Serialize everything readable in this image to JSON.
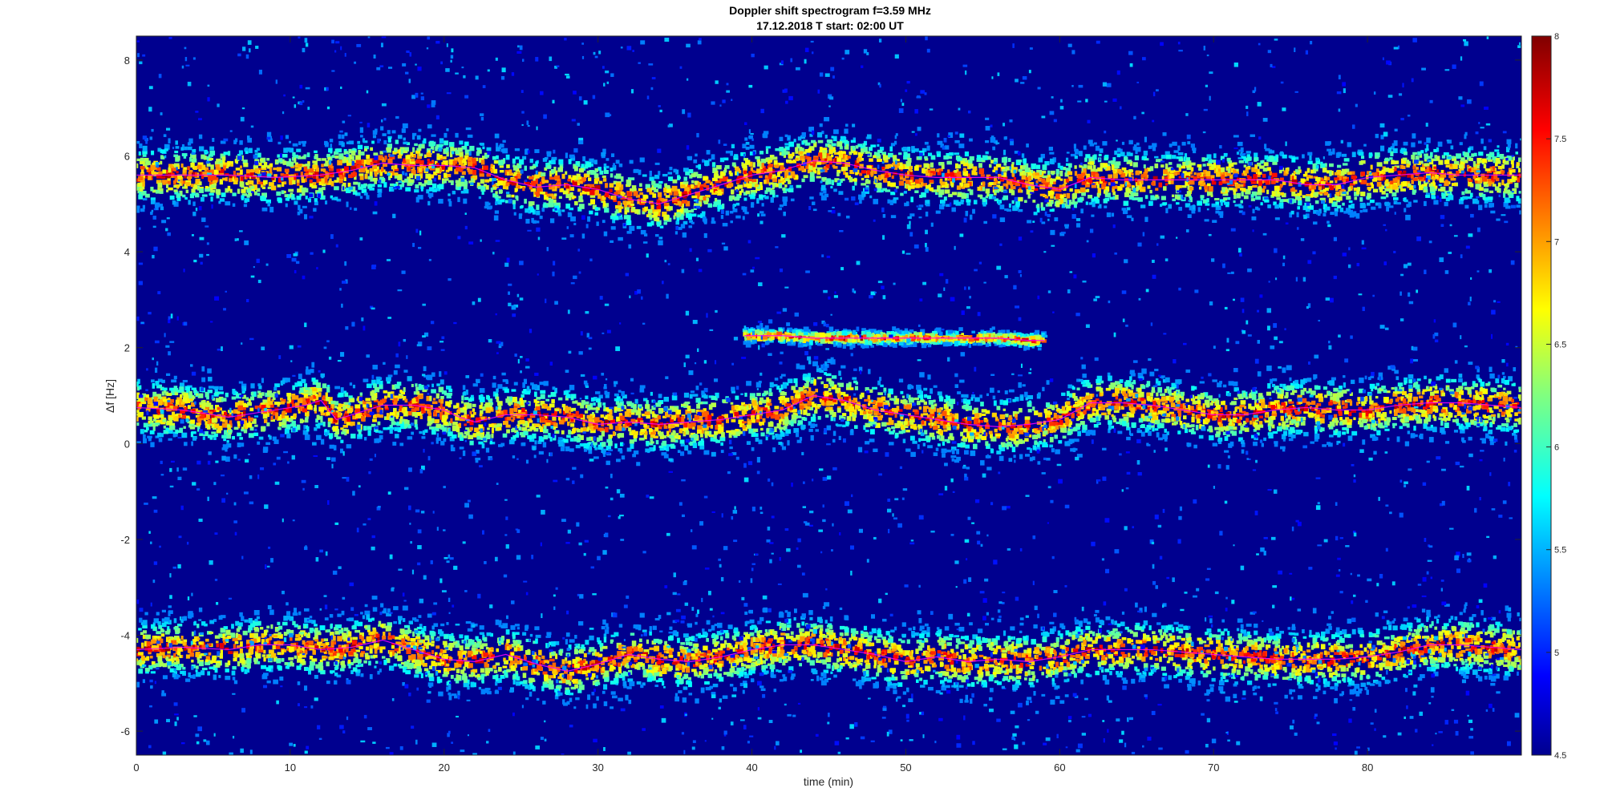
{
  "chart_data": {
    "type": "heatmap",
    "title": "Doppler shift spectrogram f=3.59 MHz",
    "subtitle": "17.12.2018   T start: 02:00 UT",
    "xlabel": "time (min)",
    "ylabel": "Δf [Hz]",
    "xlim": [
      0,
      90
    ],
    "ylim": [
      -6.5,
      8.5
    ],
    "x_ticks": [
      "0",
      "10",
      "20",
      "30",
      "40",
      "50",
      "60",
      "70",
      "80"
    ],
    "x_tick_values": [
      0,
      10,
      20,
      30,
      40,
      50,
      60,
      70,
      80
    ],
    "y_ticks": [
      "8",
      "6",
      "4",
      "2",
      "0",
      "-2",
      "-4",
      "-6"
    ],
    "y_tick_values": [
      8,
      6,
      4,
      2,
      0,
      -2,
      -4,
      -6
    ],
    "colorbar": {
      "range": [
        4.5,
        8
      ],
      "ticks": [
        "8",
        "7.5",
        "7",
        "6.5",
        "6",
        "5.5",
        "5",
        "4.5"
      ],
      "tick_values": [
        8,
        7.5,
        7,
        6.5,
        6,
        5.5,
        5,
        4.5
      ],
      "colormap": "jet"
    },
    "colors": {
      "background": "#00008f",
      "trace_line": "#ff00ff",
      "black_trace": "#000000"
    },
    "series": [
      {
        "x": [
          0,
          3,
          6,
          9,
          12,
          14,
          16,
          18,
          20,
          22,
          24,
          26,
          28,
          30,
          32,
          34,
          36,
          38,
          40,
          42,
          44,
          46,
          48,
          50,
          52,
          54,
          56,
          58,
          60,
          62,
          64,
          66,
          68,
          70,
          72,
          74,
          76,
          78,
          80,
          82,
          84,
          86,
          88,
          90
        ],
        "y": [
          5.6,
          5.6,
          5.6,
          5.55,
          5.6,
          5.7,
          5.85,
          5.8,
          5.8,
          5.75,
          5.5,
          5.35,
          5.4,
          5.3,
          5.1,
          5.0,
          5.2,
          5.4,
          5.6,
          5.7,
          5.9,
          5.85,
          5.7,
          5.6,
          5.55,
          5.55,
          5.55,
          5.4,
          5.3,
          5.55,
          5.5,
          5.5,
          5.5,
          5.5,
          5.5,
          5.5,
          5.4,
          5.4,
          5.55,
          5.6,
          5.65,
          5.6,
          5.6,
          5.6
        ]
      },
      {
        "x": [
          0,
          3,
          6,
          9,
          11,
          12,
          13,
          14,
          16,
          18,
          20,
          21,
          22,
          24,
          26,
          28,
          30,
          32,
          34,
          36,
          38,
          40,
          42,
          43,
          44,
          46,
          48,
          50,
          52,
          54,
          56,
          58,
          60,
          62,
          64,
          66,
          68,
          70,
          72,
          74,
          76,
          78,
          80,
          82,
          84,
          86,
          88,
          90
        ],
        "y": [
          0.75,
          0.7,
          0.55,
          0.7,
          0.8,
          0.9,
          0.5,
          0.6,
          0.8,
          0.8,
          0.7,
          0.55,
          0.45,
          0.6,
          0.6,
          0.55,
          0.4,
          0.45,
          0.4,
          0.45,
          0.5,
          0.6,
          0.7,
          0.85,
          1.0,
          0.9,
          0.7,
          0.6,
          0.5,
          0.4,
          0.35,
          0.4,
          0.5,
          0.85,
          0.85,
          0.8,
          0.7,
          0.6,
          0.6,
          0.7,
          0.75,
          0.7,
          0.7,
          0.8,
          0.85,
          0.85,
          0.8,
          0.75
        ]
      },
      {
        "x": [
          39.5,
          42,
          44,
          46,
          48,
          50,
          52,
          54,
          56,
          58,
          59
        ],
        "y": [
          2.25,
          2.25,
          2.2,
          2.2,
          2.2,
          2.2,
          2.2,
          2.2,
          2.2,
          2.15,
          2.15
        ]
      },
      {
        "x": [
          0,
          3,
          6,
          8,
          10,
          12,
          14,
          16,
          18,
          20,
          22,
          24,
          26,
          28,
          30,
          32,
          34,
          36,
          38,
          40,
          42,
          44,
          46,
          48,
          50,
          52,
          54,
          56,
          58,
          60,
          62,
          64,
          66,
          68,
          70,
          72,
          74,
          76,
          78,
          80,
          82,
          84,
          86,
          88,
          90
        ],
        "y": [
          -4.3,
          -4.25,
          -4.3,
          -4.2,
          -4.2,
          -4.3,
          -4.25,
          -4.1,
          -4.3,
          -4.5,
          -4.55,
          -4.4,
          -4.6,
          -4.75,
          -4.6,
          -4.4,
          -4.5,
          -4.55,
          -4.45,
          -4.3,
          -4.2,
          -4.2,
          -4.3,
          -4.4,
          -4.55,
          -4.45,
          -4.55,
          -4.5,
          -4.55,
          -4.45,
          -4.3,
          -4.3,
          -4.3,
          -4.35,
          -4.4,
          -4.45,
          -4.5,
          -4.5,
          -4.5,
          -4.45,
          -4.35,
          -4.2,
          -4.2,
          -4.25,
          -4.3
        ]
      }
    ]
  }
}
